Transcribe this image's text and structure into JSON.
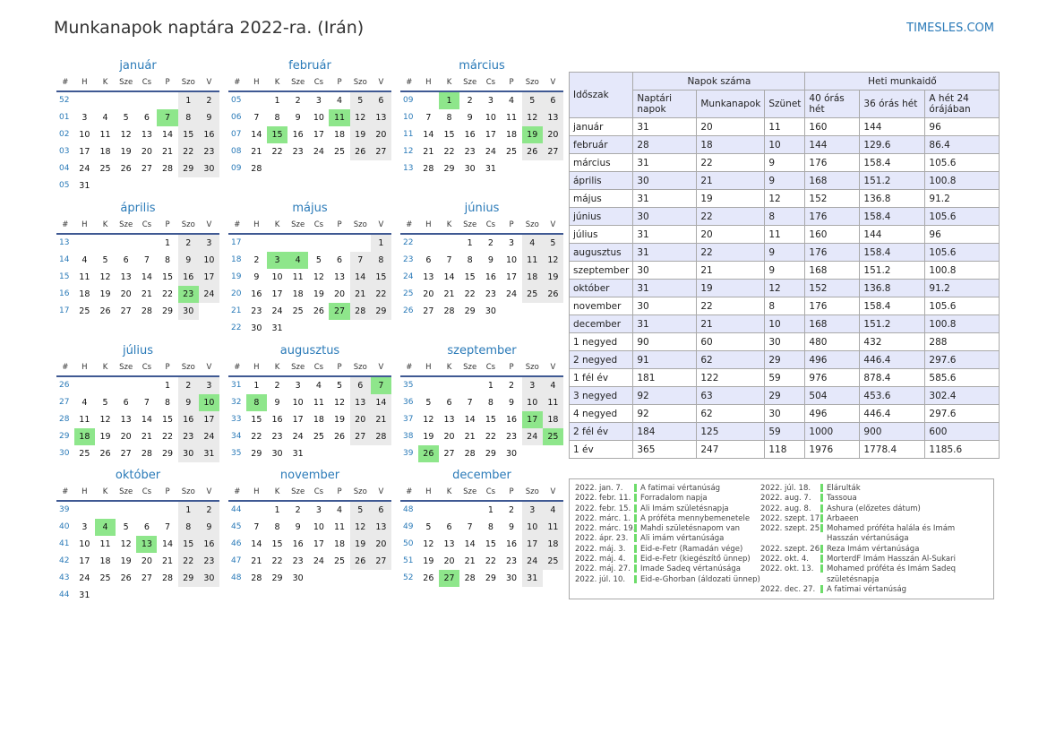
{
  "title": "Munkanapok naptára 2022-ra. (Irán)",
  "site": "TIMESLES.COM",
  "headers": [
    "#",
    "H",
    "K",
    "Sze",
    "Cs",
    "P",
    "Szo",
    "V"
  ],
  "months": [
    {
      "name": "január",
      "rows": [
        [
          "52",
          "",
          "",
          "",
          "",
          "",
          "1",
          "2"
        ],
        [
          "01",
          "3",
          "4",
          "5",
          "6",
          "7",
          "8",
          "9"
        ],
        [
          "02",
          "10",
          "11",
          "12",
          "13",
          "14",
          "15",
          "16"
        ],
        [
          "03",
          "17",
          "18",
          "19",
          "20",
          "21",
          "22",
          "23"
        ],
        [
          "04",
          "24",
          "25",
          "26",
          "27",
          "28",
          "29",
          "30"
        ],
        [
          "05",
          "31",
          "",
          "",
          "",
          "",
          "",
          ""
        ]
      ],
      "hol": [
        [
          1,
          5
        ]
      ]
    },
    {
      "name": "február",
      "rows": [
        [
          "05",
          "",
          "1",
          "2",
          "3",
          "4",
          "5",
          "6"
        ],
        [
          "06",
          "7",
          "8",
          "9",
          "10",
          "11",
          "12",
          "13"
        ],
        [
          "07",
          "14",
          "15",
          "16",
          "17",
          "18",
          "19",
          "20"
        ],
        [
          "08",
          "21",
          "22",
          "23",
          "24",
          "25",
          "26",
          "27"
        ],
        [
          "09",
          "28",
          "",
          "",
          "",
          "",
          "",
          ""
        ]
      ],
      "hol": [
        [
          1,
          5
        ],
        [
          2,
          2
        ]
      ]
    },
    {
      "name": "március",
      "rows": [
        [
          "09",
          "",
          "1",
          "2",
          "3",
          "4",
          "5",
          "6"
        ],
        [
          "10",
          "7",
          "8",
          "9",
          "10",
          "11",
          "12",
          "13"
        ],
        [
          "11",
          "14",
          "15",
          "16",
          "17",
          "18",
          "19",
          "20"
        ],
        [
          "12",
          "21",
          "22",
          "23",
          "24",
          "25",
          "26",
          "27"
        ],
        [
          "13",
          "28",
          "29",
          "30",
          "31",
          "",
          "",
          ""
        ]
      ],
      "hol": [
        [
          0,
          2
        ],
        [
          2,
          6
        ]
      ]
    },
    {
      "name": "április",
      "rows": [
        [
          "13",
          "",
          "",
          "",
          "",
          "1",
          "2",
          "3"
        ],
        [
          "14",
          "4",
          "5",
          "6",
          "7",
          "8",
          "9",
          "10"
        ],
        [
          "15",
          "11",
          "12",
          "13",
          "14",
          "15",
          "16",
          "17"
        ],
        [
          "16",
          "18",
          "19",
          "20",
          "21",
          "22",
          "23",
          "24"
        ],
        [
          "17",
          "25",
          "26",
          "27",
          "28",
          "29",
          "30",
          ""
        ]
      ],
      "hol": [
        [
          3,
          6
        ]
      ]
    },
    {
      "name": "május",
      "rows": [
        [
          "17",
          "",
          "",
          "",
          "",
          "",
          "",
          "1"
        ],
        [
          "18",
          "2",
          "3",
          "4",
          "5",
          "6",
          "7",
          "8"
        ],
        [
          "19",
          "9",
          "10",
          "11",
          "12",
          "13",
          "14",
          "15"
        ],
        [
          "20",
          "16",
          "17",
          "18",
          "19",
          "20",
          "21",
          "22"
        ],
        [
          "21",
          "23",
          "24",
          "25",
          "26",
          "27",
          "28",
          "29"
        ],
        [
          "22",
          "30",
          "31",
          "",
          "",
          "",
          "",
          ""
        ]
      ],
      "hol": [
        [
          1,
          2
        ],
        [
          1,
          3
        ],
        [
          4,
          5
        ]
      ]
    },
    {
      "name": "június",
      "rows": [
        [
          "22",
          "",
          "",
          "1",
          "2",
          "3",
          "4",
          "5"
        ],
        [
          "23",
          "6",
          "7",
          "8",
          "9",
          "10",
          "11",
          "12"
        ],
        [
          "24",
          "13",
          "14",
          "15",
          "16",
          "17",
          "18",
          "19"
        ],
        [
          "25",
          "20",
          "21",
          "22",
          "23",
          "24",
          "25",
          "26"
        ],
        [
          "26",
          "27",
          "28",
          "29",
          "30",
          "",
          "",
          ""
        ]
      ],
      "hol": []
    },
    {
      "name": "július",
      "rows": [
        [
          "26",
          "",
          "",
          "",
          "",
          "1",
          "2",
          "3"
        ],
        [
          "27",
          "4",
          "5",
          "6",
          "7",
          "8",
          "9",
          "10"
        ],
        [
          "28",
          "11",
          "12",
          "13",
          "14",
          "15",
          "16",
          "17"
        ],
        [
          "29",
          "18",
          "19",
          "20",
          "21",
          "22",
          "23",
          "24"
        ],
        [
          "30",
          "25",
          "26",
          "27",
          "28",
          "29",
          "30",
          "31"
        ]
      ],
      "hol": [
        [
          1,
          7
        ],
        [
          3,
          1
        ]
      ]
    },
    {
      "name": "augusztus",
      "rows": [
        [
          "31",
          "1",
          "2",
          "3",
          "4",
          "5",
          "6",
          "7"
        ],
        [
          "32",
          "8",
          "9",
          "10",
          "11",
          "12",
          "13",
          "14"
        ],
        [
          "33",
          "15",
          "16",
          "17",
          "18",
          "19",
          "20",
          "21"
        ],
        [
          "34",
          "22",
          "23",
          "24",
          "25",
          "26",
          "27",
          "28"
        ],
        [
          "35",
          "29",
          "30",
          "31",
          "",
          "",
          "",
          ""
        ]
      ],
      "hol": [
        [
          0,
          7
        ],
        [
          1,
          1
        ]
      ]
    },
    {
      "name": "szeptember",
      "rows": [
        [
          "35",
          "",
          "",
          "",
          "1",
          "2",
          "3",
          "4"
        ],
        [
          "36",
          "5",
          "6",
          "7",
          "8",
          "9",
          "10",
          "11"
        ],
        [
          "37",
          "12",
          "13",
          "14",
          "15",
          "16",
          "17",
          "18"
        ],
        [
          "38",
          "19",
          "20",
          "21",
          "22",
          "23",
          "24",
          "25"
        ],
        [
          "39",
          "26",
          "27",
          "28",
          "29",
          "30",
          "",
          ""
        ]
      ],
      "hol": [
        [
          2,
          6
        ],
        [
          3,
          7
        ],
        [
          4,
          1
        ]
      ]
    },
    {
      "name": "október",
      "rows": [
        [
          "39",
          "",
          "",
          "",
          "",
          "",
          "1",
          "2"
        ],
        [
          "40",
          "3",
          "4",
          "5",
          "6",
          "7",
          "8",
          "9"
        ],
        [
          "41",
          "10",
          "11",
          "12",
          "13",
          "14",
          "15",
          "16"
        ],
        [
          "42",
          "17",
          "18",
          "19",
          "20",
          "21",
          "22",
          "23"
        ],
        [
          "43",
          "24",
          "25",
          "26",
          "27",
          "28",
          "29",
          "30"
        ],
        [
          "44",
          "31",
          "",
          "",
          "",
          "",
          "",
          ""
        ]
      ],
      "hol": [
        [
          1,
          2
        ],
        [
          2,
          4
        ]
      ]
    },
    {
      "name": "november",
      "rows": [
        [
          "44",
          "",
          "1",
          "2",
          "3",
          "4",
          "5",
          "6"
        ],
        [
          "45",
          "7",
          "8",
          "9",
          "10",
          "11",
          "12",
          "13"
        ],
        [
          "46",
          "14",
          "15",
          "16",
          "17",
          "18",
          "19",
          "20"
        ],
        [
          "47",
          "21",
          "22",
          "23",
          "24",
          "25",
          "26",
          "27"
        ],
        [
          "48",
          "28",
          "29",
          "30",
          "",
          "",
          "",
          ""
        ]
      ],
      "hol": []
    },
    {
      "name": "december",
      "rows": [
        [
          "48",
          "",
          "",
          "",
          "1",
          "2",
          "3",
          "4"
        ],
        [
          "49",
          "5",
          "6",
          "7",
          "8",
          "9",
          "10",
          "11"
        ],
        [
          "50",
          "12",
          "13",
          "14",
          "15",
          "16",
          "17",
          "18"
        ],
        [
          "51",
          "19",
          "20",
          "21",
          "22",
          "23",
          "24",
          "25"
        ],
        [
          "52",
          "26",
          "27",
          "28",
          "29",
          "30",
          "31",
          ""
        ]
      ],
      "hol": [
        [
          4,
          2
        ]
      ]
    }
  ],
  "stats": {
    "col_period": "Időszak",
    "group_days": "Napok száma",
    "group_hours": "Heti munkaidő",
    "sub": [
      "Naptári napok",
      "Munkanapok",
      "Szünet",
      "40 órás hét",
      "36 órás hét",
      "A hét 24 órájában"
    ],
    "rows": [
      [
        "január",
        "31",
        "20",
        "11",
        "160",
        "144",
        "96"
      ],
      [
        "február",
        "28",
        "18",
        "10",
        "144",
        "129.6",
        "86.4"
      ],
      [
        "március",
        "31",
        "22",
        "9",
        "176",
        "158.4",
        "105.6"
      ],
      [
        "április",
        "30",
        "21",
        "9",
        "168",
        "151.2",
        "100.8"
      ],
      [
        "május",
        "31",
        "19",
        "12",
        "152",
        "136.8",
        "91.2"
      ],
      [
        "június",
        "30",
        "22",
        "8",
        "176",
        "158.4",
        "105.6"
      ],
      [
        "július",
        "31",
        "20",
        "11",
        "160",
        "144",
        "96"
      ],
      [
        "augusztus",
        "31",
        "22",
        "9",
        "176",
        "158.4",
        "105.6"
      ],
      [
        "szeptember",
        "30",
        "21",
        "9",
        "168",
        "151.2",
        "100.8"
      ],
      [
        "október",
        "31",
        "19",
        "12",
        "152",
        "136.8",
        "91.2"
      ],
      [
        "november",
        "30",
        "22",
        "8",
        "176",
        "158.4",
        "105.6"
      ],
      [
        "december",
        "31",
        "21",
        "10",
        "168",
        "151.2",
        "100.8"
      ],
      [
        "1 negyed",
        "90",
        "60",
        "30",
        "480",
        "432",
        "288"
      ],
      [
        "2 negyed",
        "91",
        "62",
        "29",
        "496",
        "446.4",
        "297.6"
      ],
      [
        "1 fél év",
        "181",
        "122",
        "59",
        "976",
        "878.4",
        "585.6"
      ],
      [
        "3 negyed",
        "92",
        "63",
        "29",
        "504",
        "453.6",
        "302.4"
      ],
      [
        "4 negyed",
        "92",
        "62",
        "30",
        "496",
        "446.4",
        "297.6"
      ],
      [
        "2 fél év",
        "184",
        "125",
        "59",
        "1000",
        "900",
        "600"
      ],
      [
        "1 év",
        "365",
        "247",
        "118",
        "1976",
        "1778.4",
        "1185.6"
      ]
    ]
  },
  "holidays_left": [
    [
      "2022. jan. 7.",
      "A fatimai vértanúság"
    ],
    [
      "2022. febr. 11.",
      "Forradalom napja"
    ],
    [
      "2022. febr. 15.",
      "Ali Imám születésnapja"
    ],
    [
      "2022. márc. 1.",
      "A próféta mennybemenetele"
    ],
    [
      "2022. márc. 19.",
      "Mahdi születésnapom van"
    ],
    [
      "2022. ápr. 23.",
      "Ali imám vértanúsága"
    ],
    [
      "2022. máj. 3.",
      "Eid-e-Fetr (Ramadán vége)"
    ],
    [
      "2022. máj. 4.",
      "Eid-e-Fetr (kiegészítő ünnep)"
    ],
    [
      "2022. máj. 27.",
      "Imade Sadeq vértanúsága"
    ],
    [
      "2022. júl. 10.",
      "Eid-e-Ghorban (áldozati ünnep)"
    ]
  ],
  "holidays_right": [
    [
      "2022. júl. 18.",
      "Elárulták"
    ],
    [
      "2022. aug. 7.",
      "Tassoua"
    ],
    [
      "2022. aug. 8.",
      "Ashura (előzetes dátum)"
    ],
    [
      "2022. szept. 17.",
      "Arbaeen"
    ],
    [
      "2022. szept. 25.",
      "Mohamed próféta halála és Imám"
    ],
    [
      "",
      "Hasszán vértanúsága"
    ],
    [
      "2022. szept. 26.",
      "Reza Imám vértanúsága"
    ],
    [
      "2022. okt. 4.",
      "MorterdF Imám Hasszán Al-Sukari"
    ],
    [
      "2022. okt. 13.",
      "Mohamed próféta és Imám Sadeq"
    ],
    [
      "",
      "születésnapja"
    ],
    [
      "2022. dec. 27.",
      "A fatimai vértanúság"
    ]
  ]
}
